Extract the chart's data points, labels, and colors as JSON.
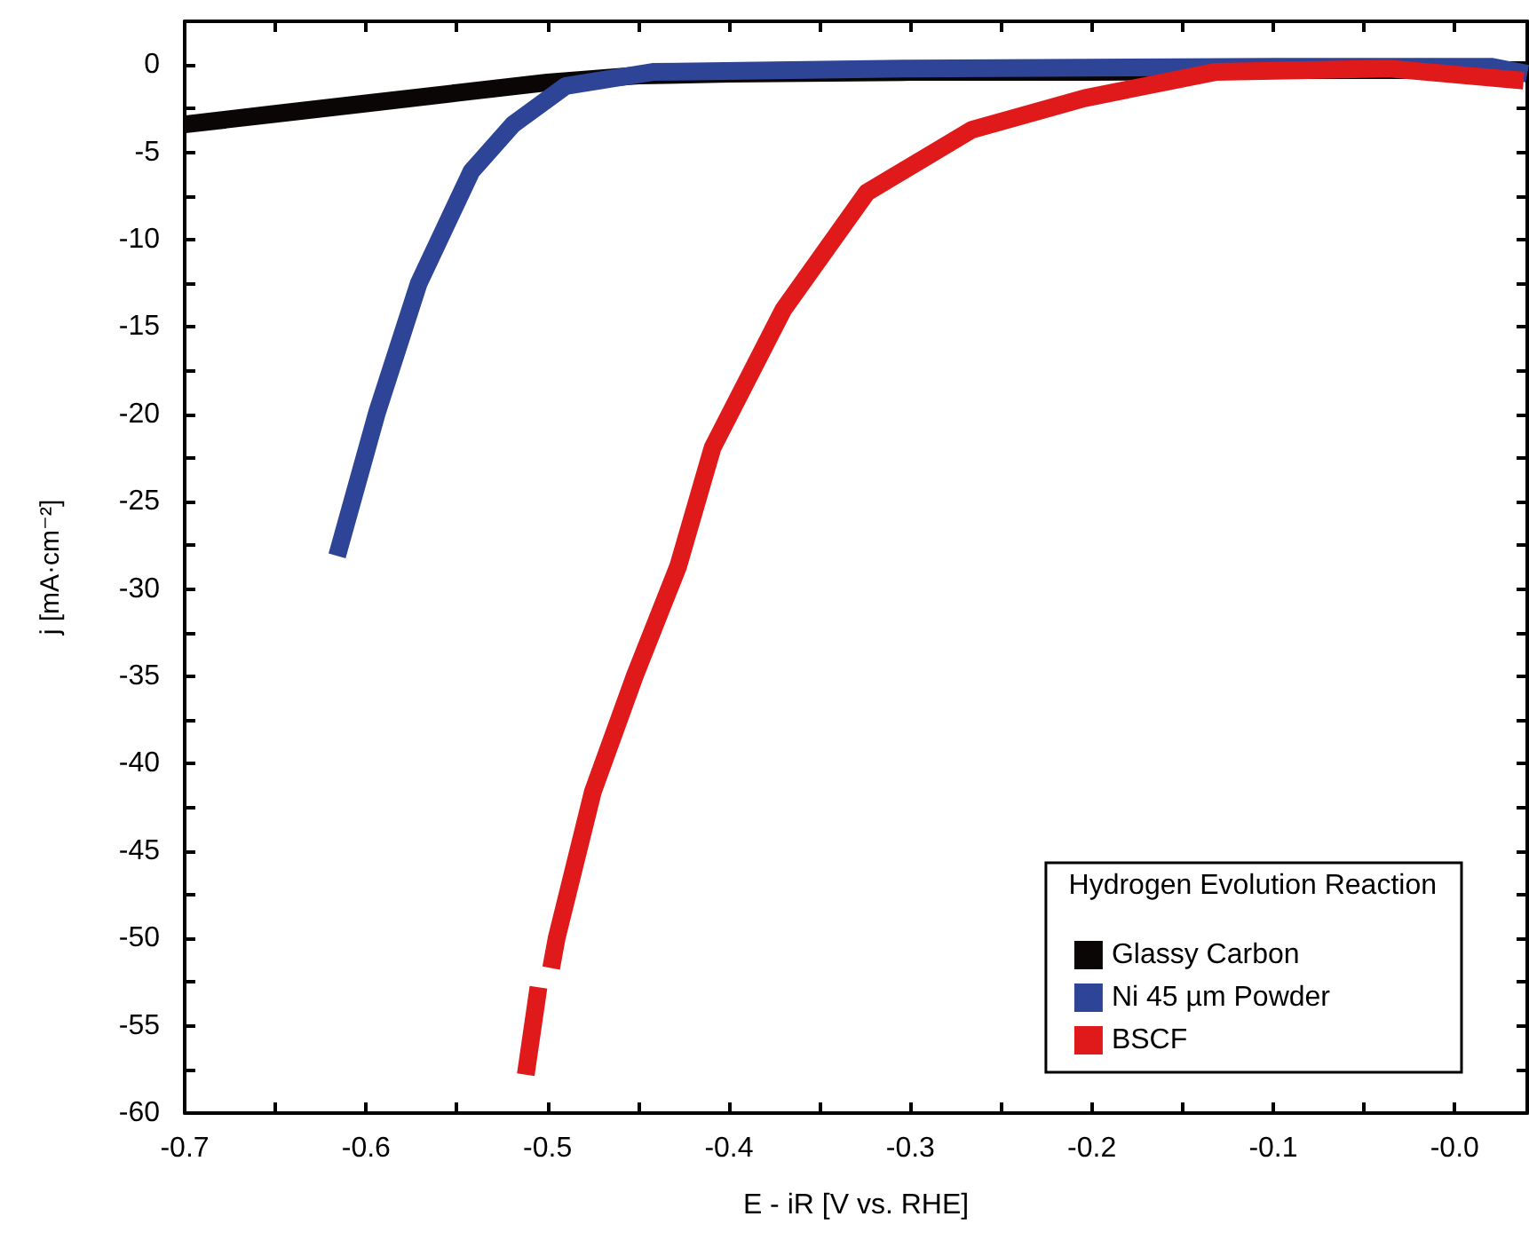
{
  "chart_data": {
    "type": "line",
    "xlabel": "E - iR [V vs. RHE]",
    "ylabel": "j [mA·cm⁻²]",
    "legend_title": "Hydrogen Evolution Reaction",
    "xlim": [
      -0.7,
      0.04
    ],
    "xticks": [
      -0.7,
      -0.6,
      -0.5,
      -0.4,
      -0.3,
      -0.2,
      -0.1,
      {
        "value": 0,
        "label": "-0.0"
      }
    ],
    "ylim": [
      -60,
      2.5
    ],
    "yticks": [
      -60,
      -55,
      -50,
      -45,
      -40,
      -35,
      -30,
      -25,
      -20,
      -15,
      -10,
      -5,
      0
    ],
    "grid": false,
    "legend": "bottom right",
    "marker": "none",
    "line_style": "solid",
    "series": [
      {
        "name": "Glassy Carbon",
        "color": "#0a0606",
        "x": [
          -0.7,
          -0.65,
          -0.6,
          -0.55,
          -0.5,
          -0.45,
          -0.4,
          -0.3,
          -0.2,
          -0.1,
          0,
          0.04
        ],
        "values": [
          -3.4,
          -2.8,
          -2.2,
          -1.6,
          -1.0,
          -0.6,
          -0.5,
          -0.4,
          -0.4,
          -0.3,
          -0.3,
          -0.3
        ]
      },
      {
        "name": "Ni 45 µm Powder",
        "color": "#2e4597",
        "x": [
          -0.616,
          -0.594,
          -0.571,
          -0.542,
          -0.519,
          -0.49,
          -0.442,
          -0.3,
          -0.1,
          0.02,
          0.04
        ],
        "values": [
          -28.1,
          -19.9,
          -12.5,
          -6.1,
          -3.4,
          -1.2,
          -0.4,
          -0.2,
          -0.1,
          -0.1,
          -0.5
        ]
      },
      {
        "name": "BSCF",
        "color": "#e0191b",
        "x": [
          -0.512,
          -0.505,
          -0.502,
          -0.498,
          -0.495,
          -0.475,
          -0.452,
          -0.428,
          -0.409,
          -0.37,
          -0.324,
          -0.266,
          -0.204,
          -0.132,
          -0.037,
          0.038
        ],
        "values": [
          -57.8,
          -52.8,
          null,
          -51.7,
          -50,
          -41.6,
          -35,
          -28.7,
          -21.9,
          -14,
          -7.3,
          -3.7,
          -1.9,
          -0.4,
          -0.2,
          -0.9
        ]
      }
    ]
  }
}
